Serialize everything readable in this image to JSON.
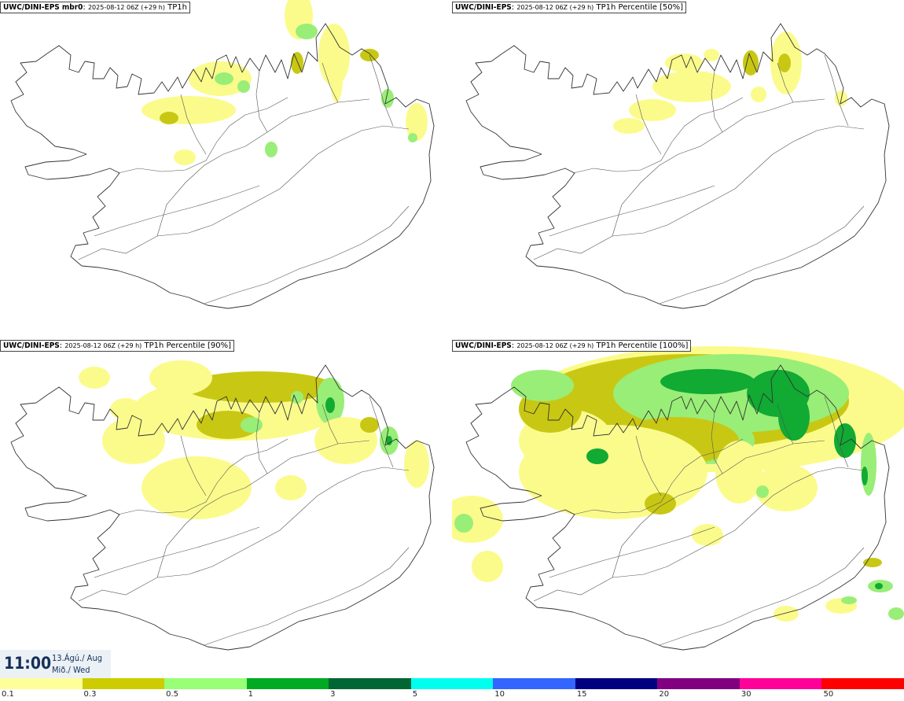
{
  "panels": [
    {
      "source": "UWC/DINI-EPS mbr0",
      "run": "2025-08-12 06Z (+29 h)",
      "variable": "TP1h"
    },
    {
      "source": "UWC/DINI-EPS",
      "run": "2025-08-12 06Z (+29 h)",
      "variable": "TP1h Percentile [50%]"
    },
    {
      "source": "UWC/DINI-EPS",
      "run": "2025-08-12 06Z (+29 h)",
      "variable": "TP1h Percentile [90%]"
    },
    {
      "source": "UWC/DINI-EPS",
      "run": "2025-08-12 06Z (+29 h)",
      "variable": "TP1h Percentile [100%]"
    }
  ],
  "valid_time": {
    "time": "11:00",
    "date_line": "13.Ágú./ Aug",
    "weekday_line": "Mið./ Wed"
  },
  "legend": {
    "ticks": [
      "0.1",
      "0.3",
      "0.5",
      "1",
      "3",
      "5",
      "10",
      "15",
      "20",
      "30",
      "50"
    ],
    "colors": [
      "#ffff99",
      "#cccc00",
      "#99ff77",
      "#00aa22",
      "#006633",
      "#00ffee",
      "#3366ff",
      "#000080",
      "#800080",
      "#ff0099",
      "#ff0000"
    ]
  },
  "field_colors": {
    "light": "#fbfb8c",
    "olive": "#c8c814",
    "lightgreen": "#99ee77",
    "green": "#11aa33"
  }
}
